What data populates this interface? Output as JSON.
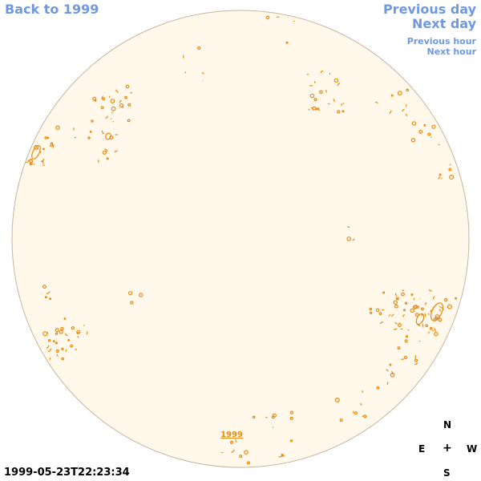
{
  "nav": {
    "back": "Back to 1999",
    "previous_day": "Previous day",
    "next_day": "Next day",
    "previous_hour": "Previous hour",
    "next_hour": "Next hour"
  },
  "disk": {
    "fill_color": "#fff8eb",
    "border_color": "#c8b6a0",
    "feature_color": "#e88a10",
    "year_label": "1999"
  },
  "timestamp": "1999-05-23T22:23:34",
  "compass": {
    "north": "N",
    "east": "E",
    "center": "+",
    "west": "W",
    "south": "S"
  }
}
